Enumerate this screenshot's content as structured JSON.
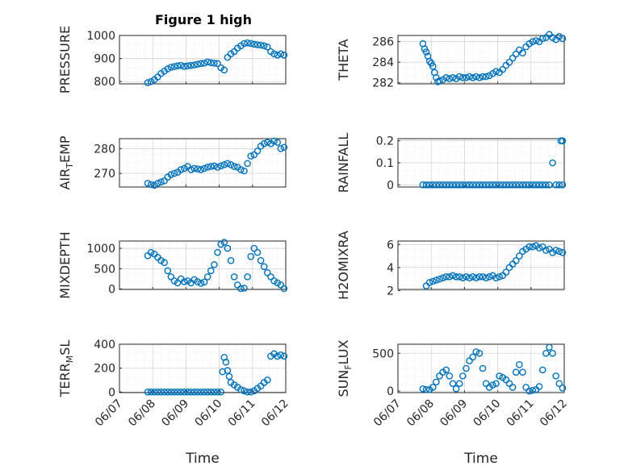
{
  "figure_title": "Figure 1 high",
  "colors": {
    "marker": "#0072BD",
    "axis": "#262626"
  },
  "chart_data": [
    {
      "type": "scatter",
      "marker": "circle",
      "ylabel_parts": [
        "PRESSURE"
      ],
      "ylim": [
        790,
        1000
      ],
      "yticks": [
        "800",
        "900",
        "1000"
      ],
      "xlim": [
        0,
        5
      ],
      "xticks": [],
      "xlabel": "",
      "grid": true,
      "minor_grid": true,
      "x": [
        0.85,
        0.95,
        1.05,
        1.15,
        1.25,
        1.35,
        1.45,
        1.55,
        1.65,
        1.75,
        1.85,
        1.95,
        2.05,
        2.15,
        2.25,
        2.35,
        2.45,
        2.55,
        2.65,
        2.75,
        2.85,
        2.95,
        3.05,
        3.15,
        3.25,
        3.35,
        3.45,
        3.55,
        3.65,
        3.75,
        3.85,
        3.95,
        4.05,
        4.15,
        4.25,
        4.35,
        4.45,
        4.55,
        4.65,
        4.75,
        4.85,
        4.95
      ],
      "y": [
        795,
        800,
        808,
        820,
        835,
        845,
        855,
        862,
        865,
        868,
        870,
        866,
        868,
        870,
        872,
        875,
        878,
        880,
        885,
        882,
        880,
        878,
        860,
        850,
        905,
        920,
        930,
        945,
        955,
        965,
        968,
        965,
        962,
        960,
        958,
        955,
        950,
        930,
        920,
        915,
        920,
        915
      ]
    },
    {
      "type": "scatter",
      "marker": "circle",
      "ylabel_parts": [
        "THETA"
      ],
      "ylim": [
        281.9,
        286.6
      ],
      "yticks": [
        "282",
        "284",
        "286"
      ],
      "xlim": [
        0,
        5
      ],
      "xticks": [],
      "xlabel": "",
      "grid": true,
      "minor_grid": true,
      "x": [
        0.75,
        0.8,
        0.85,
        0.9,
        0.95,
        1.0,
        1.05,
        1.1,
        1.15,
        1.2,
        1.25,
        1.35,
        1.45,
        1.55,
        1.65,
        1.75,
        1.85,
        1.95,
        2.05,
        2.15,
        2.25,
        2.35,
        2.45,
        2.55,
        2.65,
        2.75,
        2.85,
        2.95,
        3.05,
        3.15,
        3.25,
        3.35,
        3.45,
        3.55,
        3.65,
        3.75,
        3.85,
        3.95,
        4.05,
        4.15,
        4.25,
        4.35,
        4.45,
        4.55,
        4.65,
        4.75,
        4.85,
        4.95
      ],
      "y": [
        285.8,
        285.3,
        285.0,
        284.6,
        284.1,
        283.9,
        283.6,
        283.0,
        282.5,
        282.1,
        282.2,
        282.3,
        282.5,
        282.4,
        282.5,
        282.4,
        282.6,
        282.5,
        282.5,
        282.6,
        282.5,
        282.6,
        282.5,
        282.6,
        282.6,
        282.7,
        282.9,
        283.1,
        283.0,
        283.3,
        283.7,
        284.0,
        284.4,
        284.8,
        285.2,
        284.9,
        285.5,
        285.8,
        286.0,
        286.1,
        286.0,
        286.3,
        286.4,
        286.7,
        286.4,
        286.2,
        286.5,
        286.3
      ]
    },
    {
      "type": "scatter",
      "marker": "circle",
      "ylabel_parts": [
        "AIR",
        "T",
        "EMP"
      ],
      "ylim": [
        264.5,
        284
      ],
      "yticks": [
        "270",
        "280"
      ],
      "xlim": [
        0,
        5
      ],
      "xticks": [],
      "xlabel": "",
      "grid": true,
      "minor_grid": true,
      "x": [
        0.85,
        0.95,
        1.05,
        1.15,
        1.25,
        1.35,
        1.45,
        1.55,
        1.65,
        1.75,
        1.85,
        1.95,
        2.05,
        2.15,
        2.25,
        2.35,
        2.45,
        2.55,
        2.65,
        2.75,
        2.85,
        2.95,
        3.05,
        3.15,
        3.25,
        3.35,
        3.45,
        3.55,
        3.65,
        3.75,
        3.85,
        3.95,
        4.05,
        4.15,
        4.25,
        4.35,
        4.45,
        4.55,
        4.65,
        4.75,
        4.85,
        4.95
      ],
      "y": [
        266,
        265.5,
        265.2,
        266,
        266.5,
        267,
        268.5,
        269.5,
        270,
        270.5,
        271.5,
        272,
        272.8,
        271.5,
        272,
        271.8,
        271.5,
        272,
        272.5,
        272.8,
        273,
        272.5,
        273,
        273.5,
        274,
        273.5,
        272.8,
        272.5,
        271.5,
        271,
        274,
        277,
        277.5,
        279,
        281,
        282,
        282.5,
        282,
        283,
        282.5,
        280,
        280.5
      ]
    },
    {
      "type": "scatter",
      "marker": "circle",
      "ylabel_parts": [
        "RAINFALL"
      ],
      "ylim": [
        -0.01,
        0.21
      ],
      "yticks": [
        "0",
        "0.1",
        "0.2"
      ],
      "xlim": [
        0,
        5
      ],
      "xticks": [],
      "xlabel": "",
      "grid": true,
      "minor_grid": true,
      "x": [
        0.75,
        0.85,
        0.95,
        1.05,
        1.15,
        1.25,
        1.35,
        1.45,
        1.55,
        1.65,
        1.75,
        1.85,
        1.95,
        2.05,
        2.15,
        2.25,
        2.35,
        2.45,
        2.55,
        2.65,
        2.75,
        2.85,
        2.95,
        3.05,
        3.15,
        3.25,
        3.35,
        3.45,
        3.55,
        3.65,
        3.75,
        3.85,
        3.95,
        4.05,
        4.15,
        4.25,
        4.35,
        4.45,
        4.55,
        4.65,
        4.75,
        4.85,
        4.95,
        4.9,
        4.95
      ],
      "y": [
        0,
        0,
        0,
        0,
        0,
        0,
        0,
        0,
        0,
        0,
        0,
        0,
        0,
        0,
        0,
        0,
        0,
        0,
        0,
        0,
        0,
        0,
        0,
        0,
        0,
        0,
        0,
        0,
        0,
        0,
        0,
        0,
        0,
        0,
        0,
        0,
        0,
        0,
        0,
        0.1,
        0,
        0,
        0,
        0.2,
        0.2
      ]
    },
    {
      "type": "scatter",
      "marker": "circle",
      "ylabel_parts": [
        "MIXDEPTH"
      ],
      "ylim": [
        -10,
        1180
      ],
      "yticks": [
        "0",
        "500",
        "1000"
      ],
      "xlim": [
        0,
        5
      ],
      "xticks": [],
      "xlabel": "",
      "grid": true,
      "minor_grid": true,
      "x": [
        0.85,
        0.95,
        1.05,
        1.15,
        1.25,
        1.35,
        1.45,
        1.55,
        1.65,
        1.75,
        1.85,
        1.95,
        2.05,
        2.15,
        2.25,
        2.35,
        2.45,
        2.55,
        2.65,
        2.75,
        2.85,
        2.95,
        3.05,
        3.15,
        3.25,
        3.35,
        3.45,
        3.55,
        3.65,
        3.75,
        3.85,
        3.95,
        4.05,
        4.15,
        4.25,
        4.35,
        4.45,
        4.55,
        4.65,
        4.75,
        4.85,
        4.95
      ],
      "y": [
        820,
        900,
        860,
        780,
        700,
        650,
        450,
        300,
        200,
        150,
        250,
        180,
        200,
        150,
        230,
        180,
        140,
        170,
        300,
        450,
        600,
        900,
        1100,
        1150,
        1000,
        700,
        300,
        100,
        10,
        20,
        300,
        800,
        1000,
        900,
        700,
        550,
        400,
        300,
        200,
        150,
        100,
        10
      ]
    },
    {
      "type": "scatter",
      "marker": "circle",
      "ylabel_parts": [
        "H2OMIXRA"
      ],
      "ylim": [
        2.1,
        6.3
      ],
      "yticks": [
        "2",
        "4",
        "6"
      ],
      "xlim": [
        0,
        5
      ],
      "xticks": [],
      "xlabel": "",
      "grid": true,
      "minor_grid": true,
      "x": [
        0.85,
        0.95,
        1.05,
        1.15,
        1.25,
        1.35,
        1.45,
        1.55,
        1.65,
        1.75,
        1.85,
        1.95,
        2.05,
        2.15,
        2.25,
        2.35,
        2.45,
        2.55,
        2.65,
        2.75,
        2.85,
        2.95,
        3.05,
        3.15,
        3.25,
        3.35,
        3.45,
        3.55,
        3.65,
        3.75,
        3.85,
        3.95,
        4.05,
        4.15,
        4.25,
        4.35,
        4.45,
        4.55,
        4.65,
        4.75,
        4.85,
        4.95
      ],
      "y": [
        2.4,
        2.7,
        2.8,
        2.9,
        3.0,
        3.1,
        3.2,
        3.2,
        3.3,
        3.2,
        3.2,
        3.1,
        3.2,
        3.1,
        3.2,
        3.1,
        3.2,
        3.2,
        3.1,
        3.2,
        3.3,
        3.1,
        3.2,
        3.3,
        3.6,
        4.0,
        4.3,
        4.6,
        5.0,
        5.4,
        5.6,
        5.8,
        5.8,
        5.9,
        5.7,
        5.8,
        5.5,
        5.6,
        5.3,
        5.5,
        5.4,
        5.3
      ]
    },
    {
      "type": "scatter",
      "marker": "circle",
      "ylabel_parts": [
        "TERR",
        "M",
        "SL"
      ],
      "ylim": [
        -5,
        400
      ],
      "yticks": [
        "0",
        "200",
        "400"
      ],
      "xlim": [
        0,
        5
      ],
      "xticks": [
        "06/07",
        "06/08",
        "06/09",
        "06/10",
        "06/11",
        "06/12"
      ],
      "xlabel": "Time",
      "grid": true,
      "minor_grid": true,
      "x": [
        0.85,
        0.95,
        1.05,
        1.15,
        1.25,
        1.35,
        1.45,
        1.55,
        1.65,
        1.75,
        1.85,
        1.95,
        2.05,
        2.15,
        2.25,
        2.35,
        2.45,
        2.55,
        2.65,
        2.75,
        2.85,
        2.95,
        3.05,
        3.1,
        3.15,
        3.2,
        3.25,
        3.3,
        3.35,
        3.45,
        3.55,
        3.65,
        3.75,
        3.85,
        3.95,
        4.05,
        4.15,
        4.25,
        4.35,
        4.45,
        4.55,
        4.65,
        4.75,
        4.85,
        4.95
      ],
      "y": [
        0,
        0,
        0,
        0,
        0,
        0,
        0,
        0,
        0,
        0,
        0,
        0,
        0,
        0,
        0,
        0,
        0,
        0,
        0,
        0,
        0,
        0,
        0,
        170,
        290,
        250,
        180,
        130,
        80,
        60,
        40,
        20,
        10,
        0,
        0,
        10,
        30,
        50,
        80,
        100,
        300,
        320,
        300,
        310,
        300
      ]
    },
    {
      "type": "scatter",
      "marker": "circle",
      "ylabel_parts": [
        "SUN",
        "F",
        "LUX"
      ],
      "ylim": [
        -20,
        620
      ],
      "yticks": [
        "0",
        "500"
      ],
      "xlim": [
        0,
        5
      ],
      "xticks": [
        "06/07",
        "06/08",
        "06/09",
        "06/10",
        "06/11",
        "06/12"
      ],
      "xlabel": "Time",
      "grid": true,
      "minor_grid": true,
      "x": [
        0.75,
        0.85,
        0.95,
        1.05,
        1.15,
        1.25,
        1.35,
        1.45,
        1.55,
        1.65,
        1.75,
        1.85,
        1.95,
        2.05,
        2.15,
        2.25,
        2.35,
        2.45,
        2.55,
        2.65,
        2.75,
        2.85,
        2.95,
        3.05,
        3.15,
        3.25,
        3.35,
        3.45,
        3.55,
        3.65,
        3.75,
        3.85,
        3.95,
        4.05,
        4.15,
        4.25,
        4.35,
        4.45,
        4.55,
        4.65,
        4.75,
        4.85,
        4.95
      ],
      "y": [
        30,
        20,
        20,
        50,
        120,
        200,
        250,
        280,
        200,
        100,
        30,
        100,
        200,
        300,
        400,
        450,
        520,
        500,
        300,
        100,
        50,
        80,
        100,
        200,
        180,
        150,
        100,
        50,
        250,
        350,
        250,
        50,
        0,
        10,
        20,
        60,
        280,
        500,
        580,
        500,
        200,
        100,
        40
      ]
    }
  ]
}
